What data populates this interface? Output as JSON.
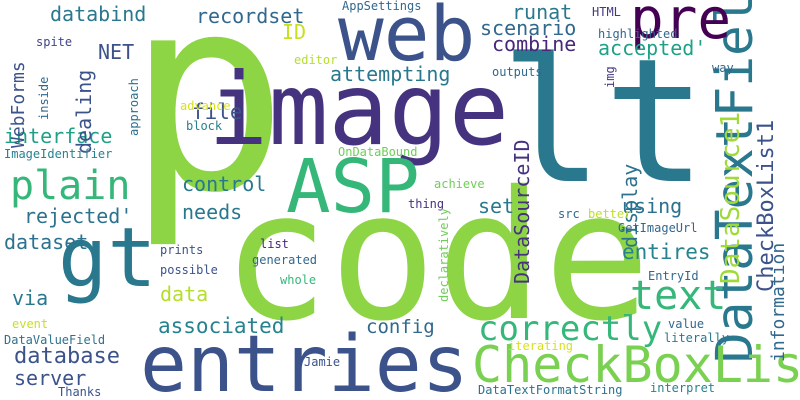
{
  "words": [
    {
      "text": "p",
      "color": "#8dd544",
      "rotated": false
    },
    {
      "text": "code",
      "color": "#8dd544",
      "rotated": false
    },
    {
      "text": "lt",
      "color": "#2a788e",
      "rotated": false
    },
    {
      "text": "image",
      "color": "#46337f",
      "rotated": false
    },
    {
      "text": "entries",
      "color": "#3b528b",
      "rotated": false
    },
    {
      "text": "web",
      "color": "#3b528b",
      "rotated": false
    },
    {
      "text": "gt",
      "color": "#2a788e",
      "rotated": false
    },
    {
      "text": "ASP",
      "color": "#35b779",
      "rotated": false
    },
    {
      "text": "DataTextField",
      "color": "#2a788e",
      "rotated": true
    },
    {
      "text": "CheckBoxList",
      "color": "#7ad151",
      "rotated": false
    },
    {
      "text": "pre",
      "color": "#440154",
      "rotated": false
    },
    {
      "text": "plain",
      "color": "#35b779",
      "rotated": false
    },
    {
      "text": "text",
      "color": "#35b779",
      "rotated": false
    },
    {
      "text": "correctly",
      "color": "#35b779",
      "rotated": false
    },
    {
      "text": "DataSource1",
      "color": "#a0da39",
      "rotated": true
    },
    {
      "text": "CheckBoxList1",
      "color": "#3b528b",
      "rotated": true
    },
    {
      "text": "DataSourceID",
      "color": "#46337f",
      "rotated": true
    },
    {
      "text": "database",
      "color": "#3b528b",
      "rotated": false
    },
    {
      "text": "associated",
      "color": "#26828e",
      "rotated": false
    },
    {
      "text": "display",
      "color": "#2c728e",
      "rotated": true
    },
    {
      "text": "information",
      "color": "#31688e",
      "rotated": true
    },
    {
      "text": "entires",
      "color": "#26828e",
      "rotated": false
    },
    {
      "text": "attempting",
      "color": "#2a788e",
      "rotated": false
    },
    {
      "text": "combine",
      "color": "#482878",
      "rotated": false
    },
    {
      "text": "accepted'",
      "color": "#1fa187",
      "rotated": false
    },
    {
      "text": "scenario",
      "color": "#31688e",
      "rotated": false
    },
    {
      "text": "databind",
      "color": "#2a788e",
      "rotated": false
    },
    {
      "text": "recordset",
      "color": "#31688e",
      "rotated": false
    },
    {
      "text": "runat",
      "color": "#2a788e",
      "rotated": false
    },
    {
      "text": "file",
      "color": "#3b528b",
      "rotated": false
    },
    {
      "text": "control",
      "color": "#2a788e",
      "rotated": false
    },
    {
      "text": "needs",
      "color": "#2a788e",
      "rotated": false
    },
    {
      "text": "using",
      "color": "#2c728e",
      "rotated": false
    },
    {
      "text": "set",
      "color": "#2a788e",
      "rotated": false
    },
    {
      "text": "data",
      "color": "#b5de2b",
      "rotated": false
    },
    {
      "text": "config",
      "color": "#31688e",
      "rotated": false
    },
    {
      "text": "server",
      "color": "#3b528b",
      "rotated": false
    },
    {
      "text": "via",
      "color": "#2a788e",
      "rotated": false
    },
    {
      "text": "dataset",
      "color": "#2c728e",
      "rotated": false
    },
    {
      "text": "rejected'",
      "color": "#2c728e",
      "rotated": false
    },
    {
      "text": "interface",
      "color": "#1fa187",
      "rotated": false
    },
    {
      "text": "NET",
      "color": "#3b528b",
      "rotated": false
    },
    {
      "text": "ID",
      "color": "#c8e020",
      "rotated": false
    },
    {
      "text": "dealing",
      "color": "#3b528b",
      "rotated": true
    },
    {
      "text": "WebForms",
      "color": "#3b528b",
      "rotated": true
    },
    {
      "text": "AppSettings",
      "color": "#31688e",
      "rotated": false
    },
    {
      "text": "HTML",
      "color": "#443983",
      "rotated": false
    },
    {
      "text": "highlighted",
      "color": "#31688e",
      "rotated": false
    },
    {
      "text": "editor",
      "color": "#b5de2b",
      "rotated": false
    },
    {
      "text": "way",
      "color": "#31688e",
      "rotated": false
    },
    {
      "text": "outputs",
      "color": "#31688e",
      "rotated": false
    },
    {
      "text": "spite",
      "color": "#414487",
      "rotated": false
    },
    {
      "text": "approach",
      "color": "#2c728e",
      "rotated": true
    },
    {
      "text": "inside",
      "color": "#31688e",
      "rotated": true
    },
    {
      "text": "advance",
      "color": "#d8e219",
      "rotated": false
    },
    {
      "text": "block",
      "color": "#26828e",
      "rotated": false
    },
    {
      "text": "ImageIdentifier",
      "color": "#26828e",
      "rotated": false
    },
    {
      "text": "OnDataBound",
      "color": "#6ece58",
      "rotated": false
    },
    {
      "text": "achieve",
      "color": "#6ece58",
      "rotated": false
    },
    {
      "text": "thing",
      "color": "#46337f",
      "rotated": false
    },
    {
      "text": "src",
      "color": "#31688e",
      "rotated": false
    },
    {
      "text": "better",
      "color": "#bddf26",
      "rotated": false
    },
    {
      "text": "img",
      "color": "#443983",
      "rotated": true
    },
    {
      "text": "GetImageUrl",
      "color": "#31688e",
      "rotated": false
    },
    {
      "text": "declaratively",
      "color": "#6ece58",
      "rotated": true
    },
    {
      "text": "list",
      "color": "#482878",
      "rotated": false
    },
    {
      "text": "generated",
      "color": "#31688e",
      "rotated": false
    },
    {
      "text": "prints",
      "color": "#3b528b",
      "rotated": false
    },
    {
      "text": "possible",
      "color": "#3b528b",
      "rotated": false
    },
    {
      "text": "whole",
      "color": "#35b779",
      "rotated": false
    },
    {
      "text": "EntryId",
      "color": "#31688e",
      "rotated": false
    },
    {
      "text": "value",
      "color": "#31688e",
      "rotated": false
    },
    {
      "text": "literally",
      "color": "#2a788e",
      "rotated": false
    },
    {
      "text": "event",
      "color": "#c8e020",
      "rotated": false
    },
    {
      "text": "DataValueField",
      "color": "#2c728e",
      "rotated": false
    },
    {
      "text": "Jamie",
      "color": "#3b528b",
      "rotated": false
    },
    {
      "text": "iterating",
      "color": "#d8e219",
      "rotated": false
    },
    {
      "text": "interpret",
      "color": "#26828e",
      "rotated": false
    },
    {
      "text": "DataTextFormatString",
      "color": "#2c728e",
      "rotated": false
    },
    {
      "text": "Thanks",
      "color": "#3b528b",
      "rotated": false
    }
  ]
}
